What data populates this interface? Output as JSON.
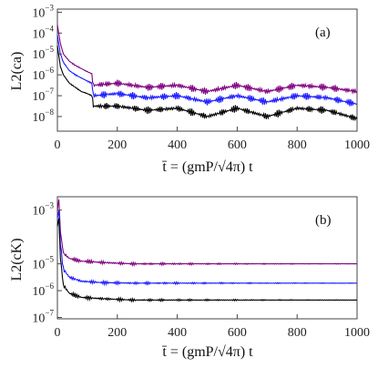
{
  "chart_data": [
    {
      "type": "line",
      "panel_label": "(a)",
      "ylabel": "L2(ca)",
      "xlabel": "t̄ = (gmP/√4π) t",
      "yscale": "log",
      "xlim": [
        0,
        1000
      ],
      "ylim_log10": [
        -8.7,
        -2.85
      ],
      "xticks": [
        0,
        200,
        400,
        600,
        800,
        1000
      ],
      "yticks_exp": [
        -3,
        -4,
        -5,
        -6,
        -7,
        -8
      ],
      "colors": [
        "#800080",
        "#1a1aff",
        "#000000"
      ],
      "series": [
        {
          "x": [
            0,
            10,
            20,
            40,
            60,
            80,
            100,
            115,
            120,
            200,
            300,
            400,
            500,
            600,
            700,
            800,
            900,
            1000
          ],
          "log10_y": [
            -3.6,
            -4.5,
            -5.0,
            -5.35,
            -5.55,
            -5.7,
            -5.85,
            -5.95,
            -6.5,
            -6.4,
            -6.6,
            -6.5,
            -6.8,
            -6.5,
            -6.8,
            -6.5,
            -6.6,
            -6.8
          ]
        },
        {
          "x": [
            0,
            10,
            20,
            40,
            60,
            80,
            100,
            115,
            120,
            200,
            300,
            400,
            500,
            600,
            700,
            800,
            900,
            1000
          ],
          "log10_y": [
            -4.1,
            -5.0,
            -5.4,
            -5.8,
            -6.0,
            -6.15,
            -6.3,
            -6.4,
            -7.0,
            -6.9,
            -7.1,
            -7.0,
            -7.3,
            -7.0,
            -7.3,
            -7.0,
            -7.1,
            -7.4
          ]
        },
        {
          "x": [
            0,
            10,
            20,
            40,
            60,
            80,
            100,
            115,
            120,
            200,
            300,
            400,
            500,
            600,
            700,
            800,
            900,
            1000
          ],
          "log10_y": [
            -4.6,
            -5.6,
            -6.0,
            -6.4,
            -6.6,
            -6.8,
            -6.9,
            -7.0,
            -7.5,
            -7.5,
            -7.7,
            -7.6,
            -8.0,
            -7.6,
            -8.0,
            -7.6,
            -7.7,
            -8.1
          ]
        }
      ]
    },
    {
      "type": "line",
      "panel_label": "(b)",
      "ylabel": "L2(cK)",
      "xlabel": "t̄ = (gmP/√4π) t",
      "yscale": "log",
      "xlim": [
        0,
        1000
      ],
      "ylim_log10": [
        -7.05,
        -2.5
      ],
      "xticks": [
        0,
        200,
        400,
        600,
        800,
        1000
      ],
      "yticks_exp": [
        -3,
        -5,
        -6,
        -7
      ],
      "colors": [
        "#800080",
        "#1a1aff",
        "#000000"
      ],
      "series": [
        {
          "x": [
            0,
            5,
            10,
            20,
            40,
            80,
            150,
            250,
            400,
            600,
            800,
            1000
          ],
          "log10_y": [
            -3.0,
            -2.6,
            -3.8,
            -4.6,
            -4.8,
            -4.9,
            -4.95,
            -5.0,
            -5.0,
            -5.0,
            -5.0,
            -5.0
          ]
        },
        {
          "x": [
            0,
            5,
            10,
            20,
            40,
            80,
            150,
            250,
            400,
            600,
            800,
            1000
          ],
          "log10_y": [
            -3.3,
            -3.0,
            -4.3,
            -5.2,
            -5.5,
            -5.65,
            -5.7,
            -5.72,
            -5.72,
            -5.72,
            -5.72,
            -5.72
          ]
        },
        {
          "x": [
            0,
            5,
            10,
            20,
            40,
            80,
            150,
            250,
            400,
            600,
            800,
            1000
          ],
          "log10_y": [
            -3.6,
            -3.3,
            -4.8,
            -5.8,
            -6.1,
            -6.25,
            -6.3,
            -6.35,
            -6.35,
            -6.35,
            -6.35,
            -6.35
          ]
        }
      ]
    }
  ]
}
